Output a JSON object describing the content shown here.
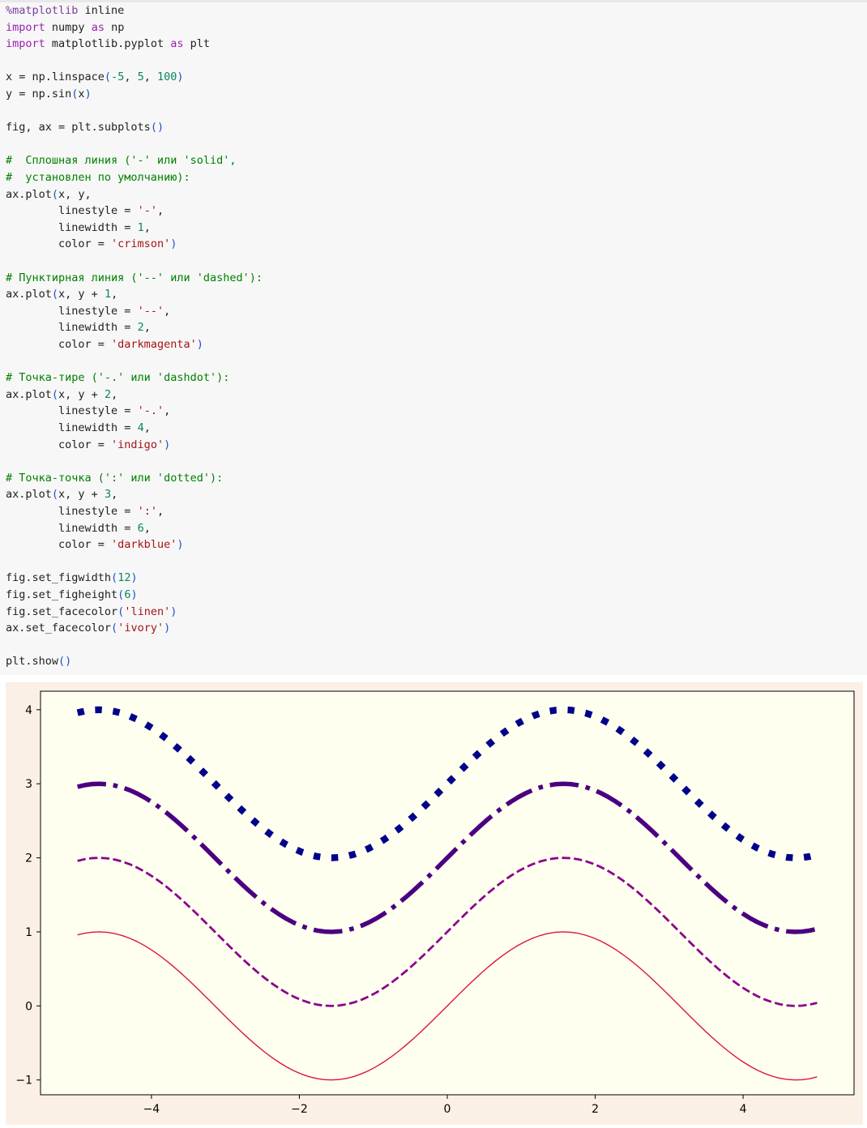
{
  "theme": {
    "keyword": "#9a1fb0",
    "string": "#a31515",
    "number": "#098658",
    "comment": "#008000",
    "paren": "#1e51c9",
    "default": "#212121",
    "magic": "#7a3e9d"
  },
  "code_cell": {
    "lines": [
      [
        {
          "t": "%matplotlib",
          "c": "magic"
        },
        {
          "t": " inline",
          "c": "default"
        }
      ],
      [
        {
          "t": "import",
          "c": "keyword"
        },
        {
          "t": " numpy ",
          "c": "default"
        },
        {
          "t": "as",
          "c": "keyword"
        },
        {
          "t": " np",
          "c": "default"
        }
      ],
      [
        {
          "t": "import",
          "c": "keyword"
        },
        {
          "t": " matplotlib.pyplot ",
          "c": "default"
        },
        {
          "t": "as",
          "c": "keyword"
        },
        {
          "t": " plt",
          "c": "default"
        }
      ],
      [],
      [
        {
          "t": "x = np.linspace",
          "c": "default"
        },
        {
          "t": "(",
          "c": "paren"
        },
        {
          "t": "-5",
          "c": "number"
        },
        {
          "t": ", ",
          "c": "default"
        },
        {
          "t": "5",
          "c": "number"
        },
        {
          "t": ", ",
          "c": "default"
        },
        {
          "t": "100",
          "c": "number"
        },
        {
          "t": ")",
          "c": "paren"
        }
      ],
      [
        {
          "t": "y = np.sin",
          "c": "default"
        },
        {
          "t": "(",
          "c": "paren"
        },
        {
          "t": "x",
          "c": "default"
        },
        {
          "t": ")",
          "c": "paren"
        }
      ],
      [],
      [
        {
          "t": "fig, ax = plt.subplots",
          "c": "default"
        },
        {
          "t": "()",
          "c": "paren"
        }
      ],
      [],
      [
        {
          "t": "#  Сплошная линия ('-' или 'solid',",
          "c": "comment"
        }
      ],
      [
        {
          "t": "#  установлен по умолчанию):",
          "c": "comment"
        }
      ],
      [
        {
          "t": "ax.plot",
          "c": "default"
        },
        {
          "t": "(",
          "c": "paren"
        },
        {
          "t": "x, y,",
          "c": "default"
        }
      ],
      [
        {
          "t": "        linestyle = ",
          "c": "default"
        },
        {
          "t": "'-'",
          "c": "string"
        },
        {
          "t": ",",
          "c": "default"
        }
      ],
      [
        {
          "t": "        linewidth = ",
          "c": "default"
        },
        {
          "t": "1",
          "c": "number"
        },
        {
          "t": ",",
          "c": "default"
        }
      ],
      [
        {
          "t": "        color = ",
          "c": "default"
        },
        {
          "t": "'crimson'",
          "c": "string"
        },
        {
          "t": ")",
          "c": "paren"
        }
      ],
      [],
      [
        {
          "t": "# Пунктирная линия ('--' или 'dashed'):",
          "c": "comment"
        }
      ],
      [
        {
          "t": "ax.plot",
          "c": "default"
        },
        {
          "t": "(",
          "c": "paren"
        },
        {
          "t": "x, y + ",
          "c": "default"
        },
        {
          "t": "1",
          "c": "number"
        },
        {
          "t": ",",
          "c": "default"
        }
      ],
      [
        {
          "t": "        linestyle = ",
          "c": "default"
        },
        {
          "t": "'--'",
          "c": "string"
        },
        {
          "t": ",",
          "c": "default"
        }
      ],
      [
        {
          "t": "        linewidth = ",
          "c": "default"
        },
        {
          "t": "2",
          "c": "number"
        },
        {
          "t": ",",
          "c": "default"
        }
      ],
      [
        {
          "t": "        color = ",
          "c": "default"
        },
        {
          "t": "'darkmagenta'",
          "c": "string"
        },
        {
          "t": ")",
          "c": "paren"
        }
      ],
      [],
      [
        {
          "t": "# Точка-тире ('-.' или 'dashdot'):",
          "c": "comment"
        }
      ],
      [
        {
          "t": "ax.plot",
          "c": "default"
        },
        {
          "t": "(",
          "c": "paren"
        },
        {
          "t": "x, y + ",
          "c": "default"
        },
        {
          "t": "2",
          "c": "number"
        },
        {
          "t": ",",
          "c": "default"
        }
      ],
      [
        {
          "t": "        linestyle = ",
          "c": "default"
        },
        {
          "t": "'-.'",
          "c": "string"
        },
        {
          "t": ",",
          "c": "default"
        }
      ],
      [
        {
          "t": "        linewidth = ",
          "c": "default"
        },
        {
          "t": "4",
          "c": "number"
        },
        {
          "t": ",",
          "c": "default"
        }
      ],
      [
        {
          "t": "        color = ",
          "c": "default"
        },
        {
          "t": "'indigo'",
          "c": "string"
        },
        {
          "t": ")",
          "c": "paren"
        }
      ],
      [],
      [
        {
          "t": "# Точка-точка (':' или 'dotted'):",
          "c": "comment"
        }
      ],
      [
        {
          "t": "ax.plot",
          "c": "default"
        },
        {
          "t": "(",
          "c": "paren"
        },
        {
          "t": "x, y + ",
          "c": "default"
        },
        {
          "t": "3",
          "c": "number"
        },
        {
          "t": ",",
          "c": "default"
        }
      ],
      [
        {
          "t": "        linestyle = ",
          "c": "default"
        },
        {
          "t": "':'",
          "c": "string"
        },
        {
          "t": ",",
          "c": "default"
        }
      ],
      [
        {
          "t": "        linewidth = ",
          "c": "default"
        },
        {
          "t": "6",
          "c": "number"
        },
        {
          "t": ",",
          "c": "default"
        }
      ],
      [
        {
          "t": "        color = ",
          "c": "default"
        },
        {
          "t": "'darkblue'",
          "c": "string"
        },
        {
          "t": ")",
          "c": "paren"
        }
      ],
      [],
      [
        {
          "t": "fig.set_figwidth",
          "c": "default"
        },
        {
          "t": "(",
          "c": "paren"
        },
        {
          "t": "12",
          "c": "number"
        },
        {
          "t": ")",
          "c": "paren"
        }
      ],
      [
        {
          "t": "fig.set_figheight",
          "c": "default"
        },
        {
          "t": "(",
          "c": "paren"
        },
        {
          "t": "6",
          "c": "number"
        },
        {
          "t": ")",
          "c": "paren"
        }
      ],
      [
        {
          "t": "fig.set_facecolor",
          "c": "default"
        },
        {
          "t": "(",
          "c": "paren"
        },
        {
          "t": "'linen'",
          "c": "string"
        },
        {
          "t": ")",
          "c": "paren"
        }
      ],
      [
        {
          "t": "ax.set_facecolor",
          "c": "default"
        },
        {
          "t": "(",
          "c": "paren"
        },
        {
          "t": "'ivory'",
          "c": "string"
        },
        {
          "t": ")",
          "c": "paren"
        }
      ],
      [],
      [
        {
          "t": "plt.show",
          "c": "default"
        },
        {
          "t": "()",
          "c": "paren"
        }
      ]
    ]
  },
  "chart_data": {
    "type": "line",
    "title": "",
    "xlabel": "",
    "ylabel": "",
    "xlim": [
      -5.5,
      5.5
    ],
    "ylim": [
      -1.2,
      4.25
    ],
    "xticks": [
      -4,
      -2,
      0,
      2,
      4
    ],
    "xtick_labels": [
      "−4",
      "−2",
      "0",
      "2",
      "4"
    ],
    "yticks": [
      -1,
      0,
      1,
      2,
      3,
      4
    ],
    "ytick_labels": [
      "−1",
      "0",
      "1",
      "2",
      "3",
      "4"
    ],
    "grid": false,
    "legend": false,
    "figure_facecolor": "#faf0e6",
    "axes_facecolor": "#fffff0",
    "x_range": [
      -5,
      5
    ],
    "num_points": 100,
    "function": "sin(x)",
    "series": [
      {
        "offset": 0,
        "linestyle": "solid",
        "linewidth": 1,
        "color": "#dc143c"
      },
      {
        "offset": 1,
        "linestyle": "dashed",
        "linewidth": 2,
        "color": "#8b008b"
      },
      {
        "offset": 2,
        "linestyle": "dashdot",
        "linewidth": 4,
        "color": "#4b0082"
      },
      {
        "offset": 3,
        "linestyle": "dotted",
        "linewidth": 6,
        "color": "#00008b"
      }
    ]
  }
}
